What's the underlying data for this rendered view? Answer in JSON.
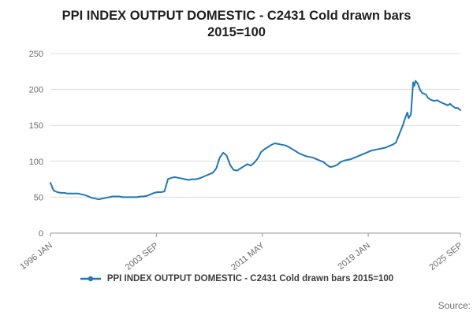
{
  "title": {
    "line1": "PPI INDEX OUTPUT DOMESTIC - C2431 Cold drawn bars",
    "line2": "2015=100"
  },
  "legend": {
    "label": "PPI INDEX OUTPUT DOMESTIC - C2431 Cold drawn bars 2015=100"
  },
  "source_label": "Source:",
  "chart_data": {
    "type": "line",
    "title": "PPI INDEX OUTPUT DOMESTIC - C2431 Cold drawn bars 2015=100",
    "grid": true,
    "legend_position": "bottom",
    "x_unit": "months since 1996-01",
    "x_range_months": [
      0,
      356
    ],
    "ylim": [
      0,
      250
    ],
    "yticks": [
      0,
      50,
      100,
      150,
      200,
      250
    ],
    "xticks": [
      {
        "label": "1996 JAN",
        "month": 0
      },
      {
        "label": "2003 SEP",
        "month": 92
      },
      {
        "label": "2011 MAY",
        "month": 184
      },
      {
        "label": "2019 JAN",
        "month": 276
      },
      {
        "label": "2025 SEP",
        "month": 356
      }
    ],
    "series": [
      {
        "name": "PPI INDEX OUTPUT DOMESTIC - C2431 Cold drawn bars 2015=100",
        "color": "#1f77b4",
        "points": [
          [
            0,
            70
          ],
          [
            1,
            66
          ],
          [
            2,
            62
          ],
          [
            3,
            59
          ],
          [
            6,
            57
          ],
          [
            9,
            56
          ],
          [
            12,
            56
          ],
          [
            15,
            55
          ],
          [
            18,
            55
          ],
          [
            21,
            55
          ],
          [
            24,
            55
          ],
          [
            27,
            54
          ],
          [
            30,
            53
          ],
          [
            33,
            51
          ],
          [
            36,
            49
          ],
          [
            39,
            48
          ],
          [
            42,
            47
          ],
          [
            45,
            48
          ],
          [
            48,
            49
          ],
          [
            51,
            50
          ],
          [
            54,
            51
          ],
          [
            57,
            51
          ],
          [
            60,
            51
          ],
          [
            63,
            50
          ],
          [
            66,
            50
          ],
          [
            69,
            50
          ],
          [
            72,
            50
          ],
          [
            75,
            50
          ],
          [
            78,
            51
          ],
          [
            81,
            51
          ],
          [
            84,
            52
          ],
          [
            87,
            54
          ],
          [
            90,
            56
          ],
          [
            93,
            57
          ],
          [
            96,
            57
          ],
          [
            99,
            58
          ],
          [
            102,
            75
          ],
          [
            105,
            77
          ],
          [
            108,
            78
          ],
          [
            111,
            77
          ],
          [
            114,
            76
          ],
          [
            117,
            75
          ],
          [
            120,
            74
          ],
          [
            123,
            75
          ],
          [
            126,
            75
          ],
          [
            129,
            76
          ],
          [
            132,
            78
          ],
          [
            135,
            80
          ],
          [
            138,
            82
          ],
          [
            141,
            84
          ],
          [
            144,
            90
          ],
          [
            147,
            105
          ],
          [
            150,
            112
          ],
          [
            153,
            108
          ],
          [
            156,
            95
          ],
          [
            159,
            88
          ],
          [
            162,
            87
          ],
          [
            165,
            90
          ],
          [
            168,
            93
          ],
          [
            171,
            96
          ],
          [
            174,
            94
          ],
          [
            177,
            98
          ],
          [
            180,
            104
          ],
          [
            183,
            113
          ],
          [
            186,
            117
          ],
          [
            189,
            120
          ],
          [
            192,
            123
          ],
          [
            195,
            125
          ],
          [
            198,
            124
          ],
          [
            201,
            123
          ],
          [
            204,
            122
          ],
          [
            207,
            120
          ],
          [
            210,
            117
          ],
          [
            213,
            114
          ],
          [
            216,
            111
          ],
          [
            219,
            109
          ],
          [
            222,
            107
          ],
          [
            225,
            106
          ],
          [
            228,
            105
          ],
          [
            231,
            103
          ],
          [
            234,
            101
          ],
          [
            237,
            99
          ],
          [
            240,
            95
          ],
          [
            243,
            92
          ],
          [
            246,
            93
          ],
          [
            249,
            95
          ],
          [
            252,
            99
          ],
          [
            255,
            101
          ],
          [
            258,
            102
          ],
          [
            261,
            103
          ],
          [
            264,
            105
          ],
          [
            267,
            107
          ],
          [
            270,
            109
          ],
          [
            273,
            111
          ],
          [
            276,
            113
          ],
          [
            279,
            115
          ],
          [
            282,
            116
          ],
          [
            285,
            117
          ],
          [
            288,
            118
          ],
          [
            291,
            119
          ],
          [
            294,
            121
          ],
          [
            297,
            123
          ],
          [
            300,
            126
          ],
          [
            303,
            138
          ],
          [
            306,
            150
          ],
          [
            308,
            160
          ],
          [
            310,
            168
          ],
          [
            311,
            160
          ],
          [
            313,
            165
          ],
          [
            315,
            210
          ],
          [
            316,
            205
          ],
          [
            317,
            212
          ],
          [
            319,
            208
          ],
          [
            321,
            199
          ],
          [
            323,
            195
          ],
          [
            326,
            193
          ],
          [
            328,
            188
          ],
          [
            330,
            186
          ],
          [
            333,
            184
          ],
          [
            336,
            185
          ],
          [
            339,
            182
          ],
          [
            342,
            180
          ],
          [
            345,
            178
          ],
          [
            347,
            180
          ],
          [
            350,
            176
          ],
          [
            352,
            174
          ],
          [
            354,
            174
          ],
          [
            356,
            171
          ]
        ]
      }
    ]
  }
}
